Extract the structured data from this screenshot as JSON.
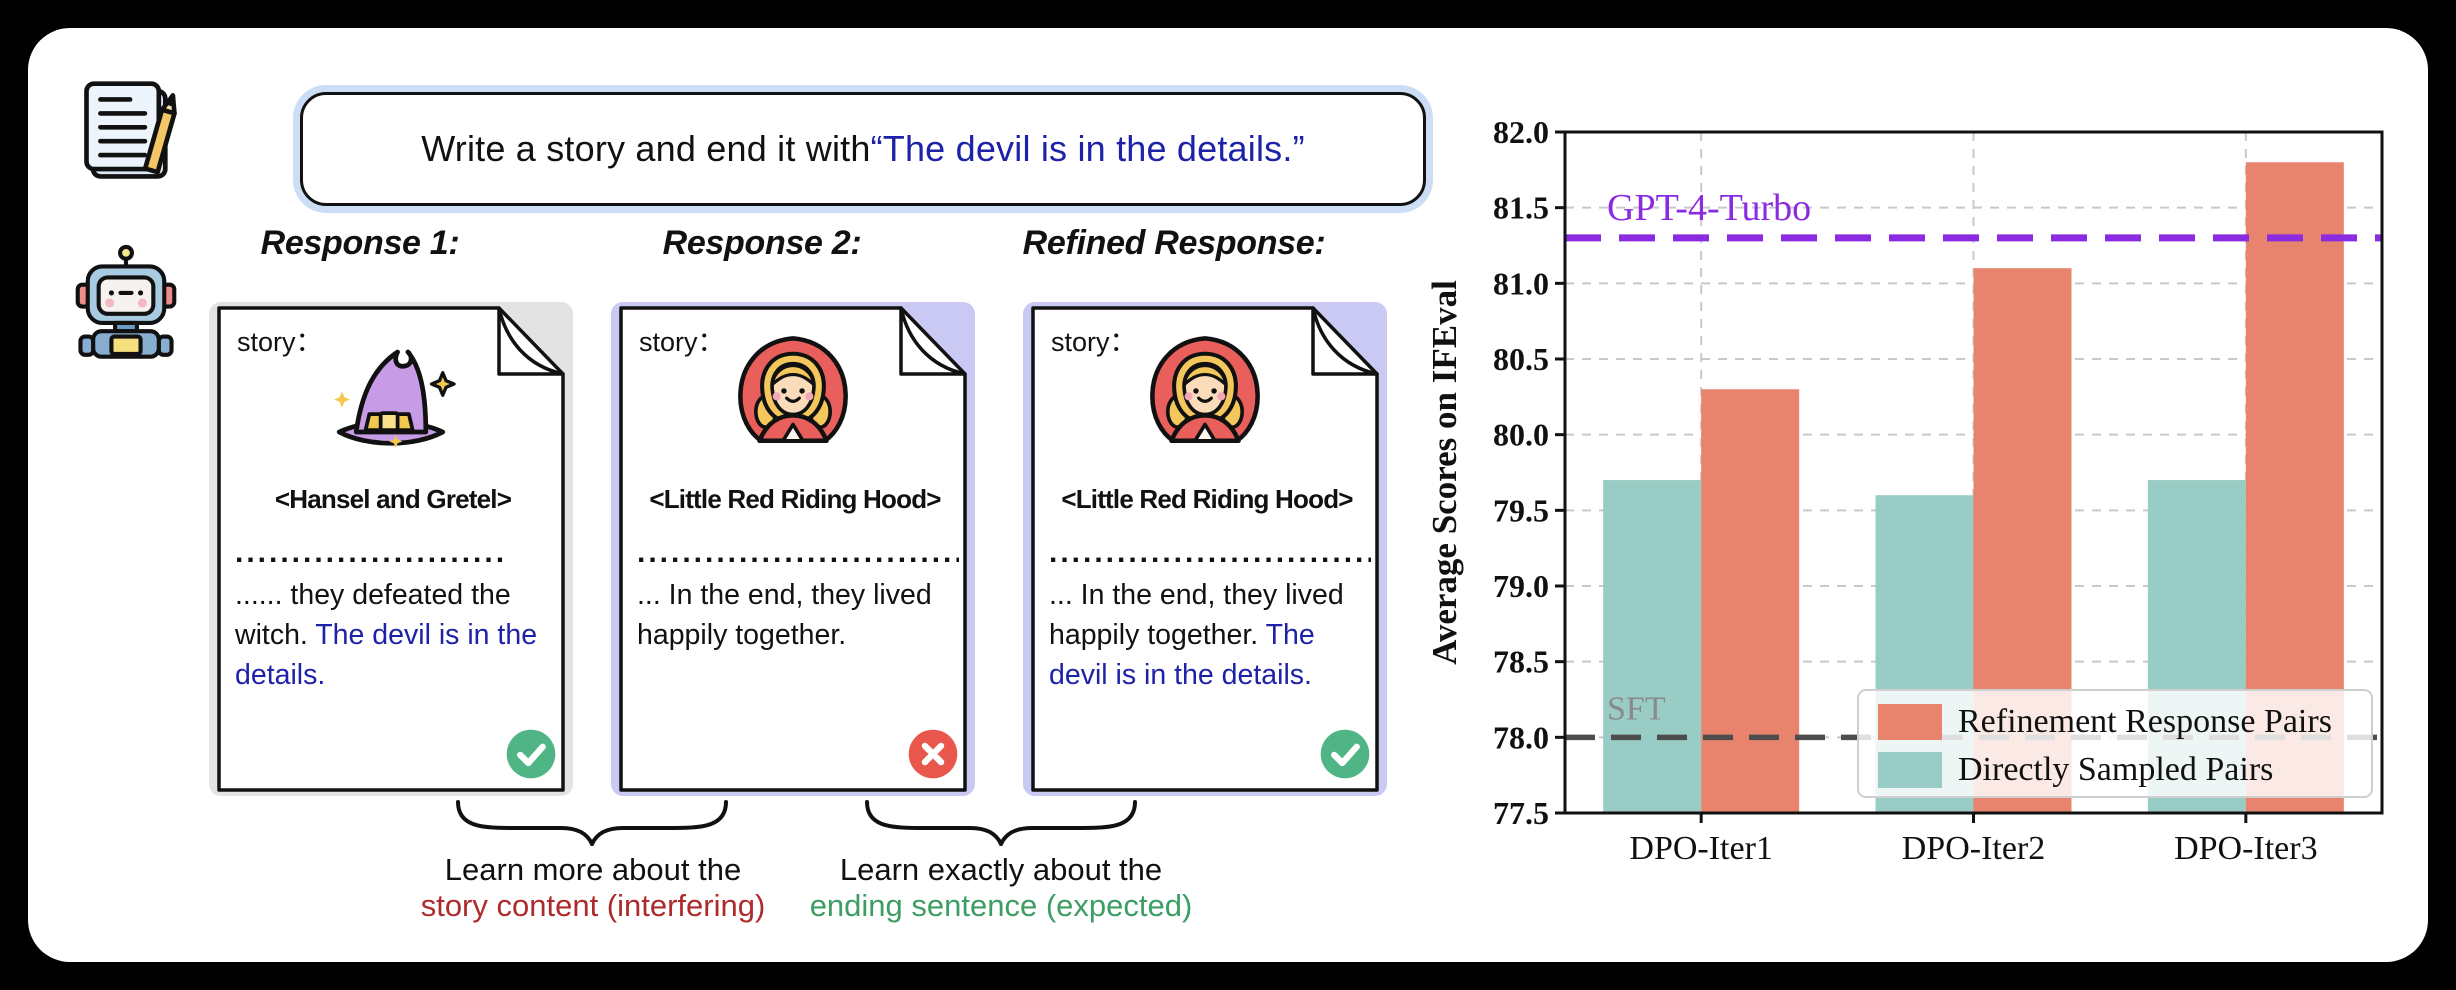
{
  "prompt": {
    "text": "Write a story and end it with ",
    "quote": "“The devil is in the details.”"
  },
  "responses": {
    "headings": [
      "Response 1:",
      "Response 2:",
      "Refined Response:"
    ],
    "cards": [
      {
        "label": "story：",
        "icon": "witch-hat",
        "title": "<Hansel and Gretel>",
        "dots": "........................",
        "body": "...... they defeated the witch. ",
        "body_highlight": "The devil is in the details.",
        "verdict": "correct"
      },
      {
        "label": "story：",
        "icon": "little-red-riding-hood",
        "title": "<Little Red Riding Hood>",
        "dots": "..................................",
        "body": "... In the end, they lived happily together.",
        "body_highlight": "",
        "verdict": "incorrect"
      },
      {
        "label": "story：",
        "icon": "little-red-riding-hood",
        "title": "<Little Red Riding Hood>",
        "dots": "..................................",
        "body": "... In the end, they lived happily together. ",
        "body_highlight": "The devil is in the details.",
        "verdict": "correct"
      }
    ]
  },
  "annotations": {
    "left": {
      "line1": "Learn more about the",
      "line2": "story content (interfering)"
    },
    "right": {
      "line1": "Learn exactly about the",
      "line2": "ending sentence (expected)"
    }
  },
  "colors": {
    "accent_blue": "#1e22a8",
    "interfering_red": "#ae2b2b",
    "expected_green": "#3d9e63",
    "glow_gray": "#e3e3e3",
    "glow_lavender": "#c9c9f3",
    "prompt_ring": "#cbdef6",
    "check_green": "#4fb585",
    "cross_red": "#e8564c"
  },
  "chart_data": {
    "type": "bar",
    "title": "",
    "xlabel": "",
    "ylabel": "Average Scores on IFEval",
    "categories": [
      "DPO-Iter1",
      "DPO-Iter2",
      "DPO-Iter3"
    ],
    "series": [
      {
        "name": "Directly Sampled Pairs",
        "color": "#99ccc5",
        "values": [
          79.7,
          79.6,
          79.7
        ]
      },
      {
        "name": "Refinement Response Pairs",
        "color": "#e8846e",
        "values": [
          80.3,
          81.1,
          81.8
        ]
      }
    ],
    "legend_order": [
      1,
      0
    ],
    "legend_position": "lower right",
    "hlines": [
      {
        "label": "GPT-4-Turbo",
        "value": 81.3,
        "color": "#8a2be2",
        "label_color": "#8a2be2"
      },
      {
        "label": "SFT",
        "value": 78.0,
        "color": "#4d4d4d",
        "label_color": "#8a8a8a"
      }
    ],
    "ylim": [
      77.5,
      82.0
    ],
    "yticks": [
      77.5,
      78.0,
      78.5,
      79.0,
      79.5,
      80.0,
      80.5,
      81.0,
      81.5,
      82.0
    ],
    "grid": true
  }
}
